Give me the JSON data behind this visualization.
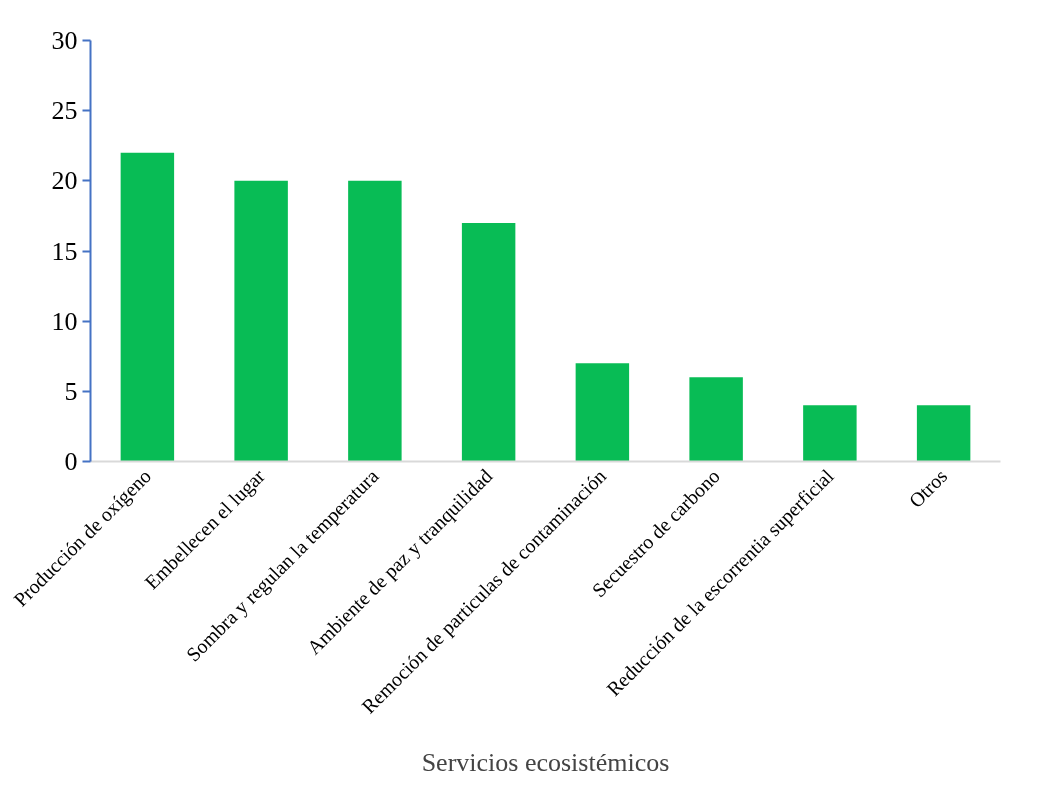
{
  "chart_data": {
    "type": "bar",
    "xlabel": "Servicios ecosistémicos",
    "categories": [
      "Producción de oxígeno",
      "Embellecen el lugar",
      "Sombra y regulan la temperatura",
      "Ambiente de paz y tranquilidad",
      "Remoción de particulas de contaminación",
      "Secuestro de carbono",
      "Reducción de la escorrentia superficial",
      "Otros"
    ],
    "values": [
      22,
      20,
      20,
      17,
      7,
      6,
      4,
      4
    ],
    "color": "#08bc55",
    "ylim": [
      0,
      30
    ],
    "yticks": [
      0,
      5,
      10,
      15,
      20,
      25,
      30
    ],
    "grid": false
  }
}
